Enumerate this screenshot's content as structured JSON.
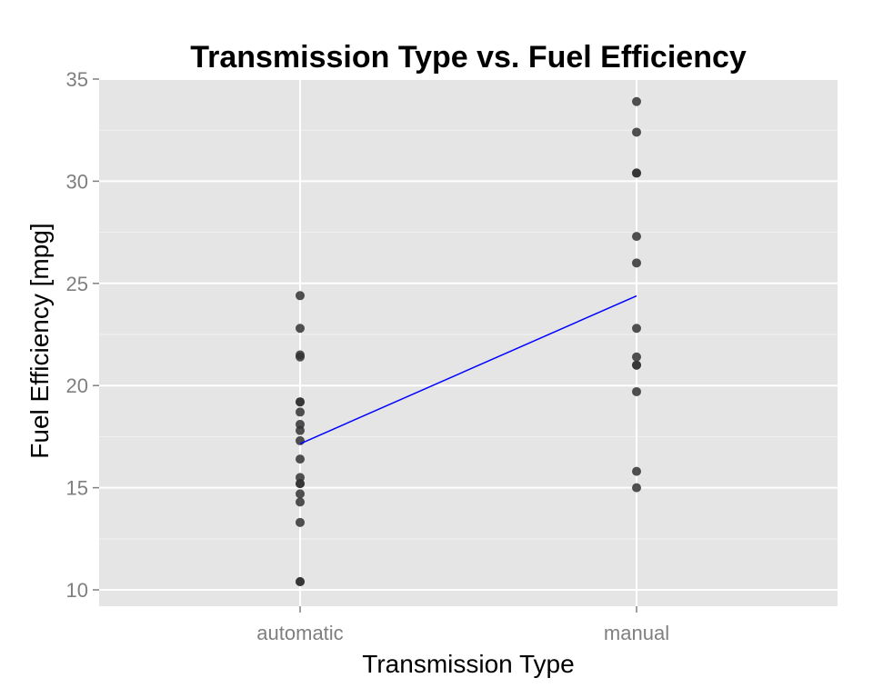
{
  "chart_data": {
    "type": "scatter",
    "title": "Transmission Type vs. Fuel Efficiency",
    "xlabel": "Transmission Type",
    "ylabel": "Fuel Efficiency [mpg]",
    "categories": [
      "automatic",
      "manual"
    ],
    "ylim": [
      9.2,
      35.0
    ],
    "yticks": [
      10,
      15,
      20,
      25,
      30,
      35
    ],
    "grid": true,
    "legend": "none",
    "series": [
      {
        "category": "automatic",
        "values": [
          24.4,
          22.8,
          21.5,
          21.4,
          19.2,
          19.2,
          18.7,
          18.1,
          17.8,
          17.3,
          16.4,
          15.5,
          15.2,
          15.2,
          14.7,
          14.3,
          13.3,
          10.4,
          10.4
        ]
      },
      {
        "category": "manual",
        "values": [
          33.9,
          32.4,
          30.4,
          30.4,
          27.3,
          26.0,
          22.8,
          21.4,
          21.0,
          21.0,
          19.7,
          15.8,
          15.0
        ]
      }
    ],
    "trend_line": {
      "from": [
        "automatic",
        17.15
      ],
      "to": [
        "manual",
        24.39
      ]
    },
    "colors": {
      "panel": "#e5e5e5",
      "grid": "#ffffff",
      "point": "#333333",
      "trend": "#0000ff"
    }
  }
}
